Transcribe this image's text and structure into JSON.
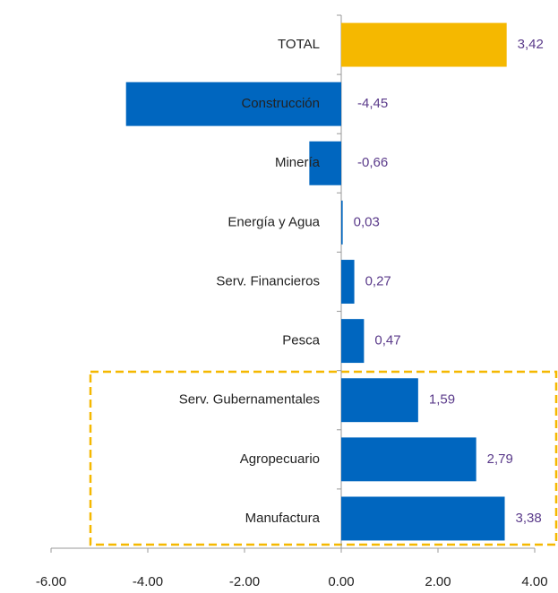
{
  "chart_data": {
    "type": "bar",
    "orientation": "horizontal",
    "categories": [
      "TOTAL",
      "Construcción",
      "Minería",
      "Energía y Agua",
      "Serv. Financieros",
      "Pesca",
      "Serv. Gubernamentales",
      "Agropecuario",
      "Manufactura"
    ],
    "values": [
      3.42,
      -4.45,
      -0.66,
      0.03,
      0.27,
      0.47,
      1.59,
      2.79,
      3.38
    ],
    "value_labels": [
      "3,42",
      "-4,45",
      "-0,66",
      "0,03",
      "0,27",
      "0,47",
      "1,59",
      "2,79",
      "3,38"
    ],
    "colors": [
      "#f5b800",
      "#0066bf",
      "#0066bf",
      "#0066bf",
      "#0066bf",
      "#0066bf",
      "#0066bf",
      "#0066bf",
      "#0066bf"
    ],
    "xlim": [
      -6,
      4
    ],
    "xticks": [
      {
        "value": -6,
        "label": "-6.00"
      },
      {
        "value": -4,
        "label": "-4.00"
      },
      {
        "value": -2,
        "label": "-2.00"
      },
      {
        "value": 0,
        "label": "0.00"
      },
      {
        "value": 2,
        "label": "2.00"
      },
      {
        "value": 4,
        "label": "4.00"
      }
    ],
    "grid": false
  }
}
